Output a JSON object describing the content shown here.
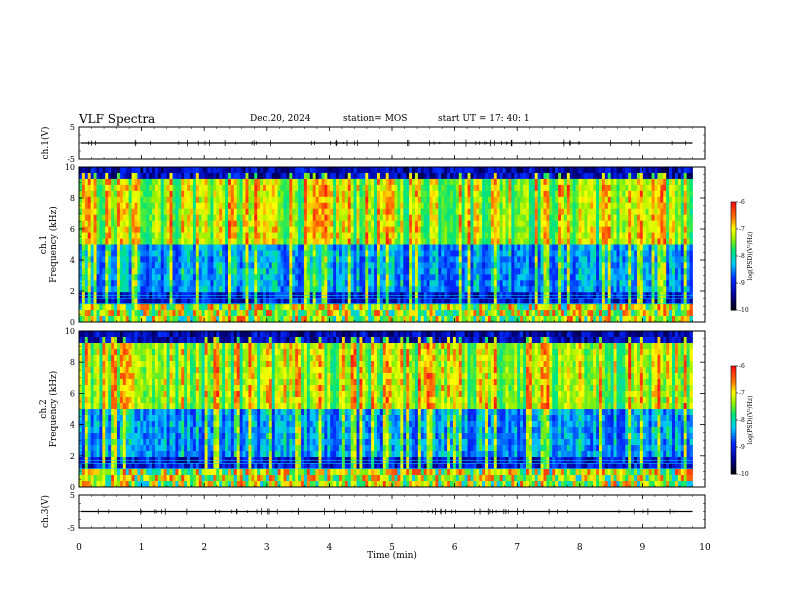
{
  "header": {
    "title": "VLF Spectra",
    "date": "Dec.20, 2024",
    "station": "station= MOS",
    "start": "start  UT  =   17: 40: 1"
  },
  "chart_data": [
    {
      "type": "line",
      "panel": "ch1-waveform",
      "ylabel": "ch.1(V)",
      "ylim": [
        -5,
        5
      ],
      "yticks": [
        "5",
        "-5"
      ],
      "xlim": [
        0,
        10
      ],
      "baseline": 0
    },
    {
      "type": "heatmap",
      "panel": "ch1-spectrogram",
      "ylabel": "ch.1\nFrequency (kHz)",
      "ylabel_top": "ch.1",
      "ylabel_bottom": "Frequency (kHz)",
      "ylim": [
        0,
        10
      ],
      "yticks": [
        "0",
        "2",
        "4",
        "6",
        "8",
        "10"
      ],
      "xlim": [
        0,
        10
      ],
      "data_end_min": 9.8,
      "colorbar": {
        "label": "log(PSD)(V²/Hz)",
        "range": [
          -10,
          -6
        ],
        "ticks": [
          "-6",
          "-7",
          "-8",
          "-9",
          "-10"
        ]
      },
      "colors": {
        "high": "#ff1a1a",
        "mid": "#ffff00",
        "low": "#00cc33",
        "lower": "#00ffff",
        "bg": "#0000cc",
        "floor": "#000022"
      }
    },
    {
      "type": "heatmap",
      "panel": "ch2-spectrogram",
      "ylabel": "ch.2\nFrequency (kHz)",
      "ylabel_top": "ch.2",
      "ylabel_bottom": "Frequency (kHz)",
      "ylim": [
        0,
        10
      ],
      "yticks": [
        "0",
        "2",
        "4",
        "6",
        "8",
        "10"
      ],
      "xlim": [
        0,
        10
      ],
      "data_end_min": 9.8,
      "colorbar": {
        "label": "log(PSD)(V²/Hz)",
        "range": [
          -10,
          -6
        ],
        "ticks": [
          "-6",
          "-7",
          "-8",
          "-9",
          "-10"
        ]
      }
    },
    {
      "type": "line",
      "panel": "ch3-waveform",
      "ylabel": "ch.3(V)",
      "ylim": [
        -5,
        5
      ],
      "yticks": [
        "5",
        "-5"
      ],
      "xlim": [
        0,
        10
      ],
      "xlabel": "Time (min)",
      "xticks": [
        "0",
        "1",
        "2",
        "3",
        "4",
        "5",
        "6",
        "7",
        "8",
        "9",
        "10"
      ],
      "baseline": 0
    }
  ]
}
